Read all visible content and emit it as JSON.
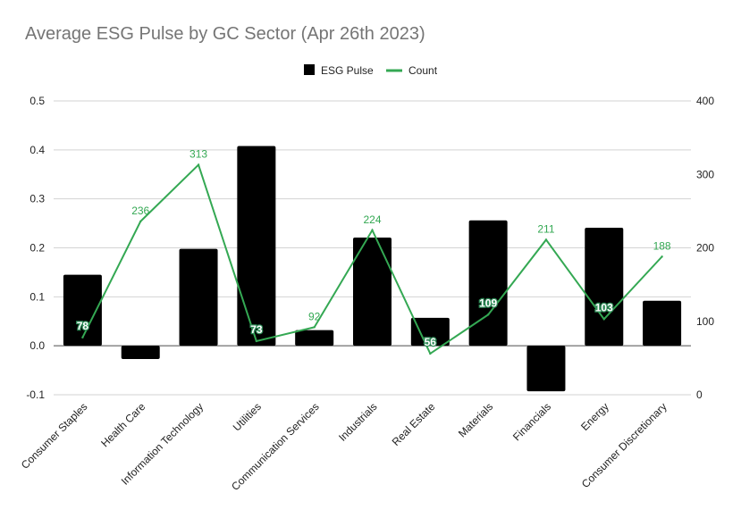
{
  "chart_data": {
    "type": "bar",
    "title": "Average ESG Pulse by GC Sector (Apr 26th 2023)",
    "categories": [
      "Consumer Staples",
      "Health Care",
      "Information Technology",
      "Utilities",
      "Communication Services",
      "Industrials",
      "Real Estate",
      "Materials",
      "Financials",
      "Energy",
      "Consumer Discretionary"
    ],
    "series": [
      {
        "name": "ESG Pulse",
        "type": "bar",
        "axis": "left",
        "color": "#000000",
        "values": [
          0.145,
          -0.027,
          0.198,
          0.408,
          0.032,
          0.221,
          0.057,
          0.256,
          -0.093,
          0.241,
          0.092
        ]
      },
      {
        "name": "Count",
        "type": "line",
        "axis": "right",
        "color": "#34a853",
        "values": [
          78,
          236,
          313,
          73,
          92,
          224,
          56,
          109,
          211,
          103,
          188
        ],
        "labels": [
          "78",
          "236",
          "313",
          "73",
          "92",
          "224",
          "56",
          "109",
          "211",
          "103",
          "188"
        ]
      }
    ],
    "left_axis": {
      "ylim": [
        -0.1,
        0.5
      ],
      "ticks": [
        -0.1,
        0.0,
        0.1,
        0.2,
        0.3,
        0.4,
        0.5
      ],
      "tick_labels": [
        "-0.1",
        "0.0",
        "0.1",
        "0.2",
        "0.3",
        "0.4",
        "0.5"
      ]
    },
    "right_axis": {
      "ylim": [
        0,
        400
      ],
      "ticks": [
        0,
        100,
        200,
        300,
        400
      ],
      "tick_labels": [
        "0",
        "100",
        "200",
        "300",
        "400"
      ]
    },
    "legend": {
      "position": "top-center",
      "entries": [
        "ESG Pulse",
        "Count"
      ]
    },
    "grid": true
  }
}
